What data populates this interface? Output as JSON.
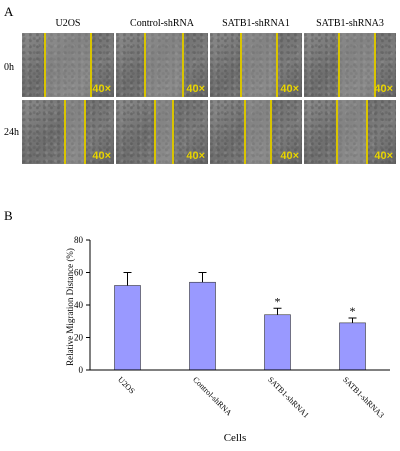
{
  "panel_a": {
    "label": "A",
    "columns": [
      "U2OS",
      "Control-shRNA",
      "SATB1-shRNA1",
      "SATB1-shRNA3"
    ],
    "rows": [
      "0h",
      "24h"
    ],
    "magnification": "40×"
  },
  "panel_b": {
    "label": "B"
  },
  "chart_data": {
    "type": "bar",
    "categories": [
      "U2OS",
      "Control-shRNA",
      "SATB1-shRNA1",
      "SATB1-shRNA3"
    ],
    "values": [
      52,
      54,
      34,
      29
    ],
    "errors": [
      8,
      6,
      4,
      3
    ],
    "significance": [
      "",
      "",
      "*",
      "*"
    ],
    "xlabel": "Cells",
    "ylabel": "Relative Migration Distance (%)",
    "ylim": [
      0,
      80
    ],
    "yticks": [
      0,
      20,
      40,
      60,
      80
    ],
    "grid": false,
    "bar_color": "#9999ff"
  }
}
